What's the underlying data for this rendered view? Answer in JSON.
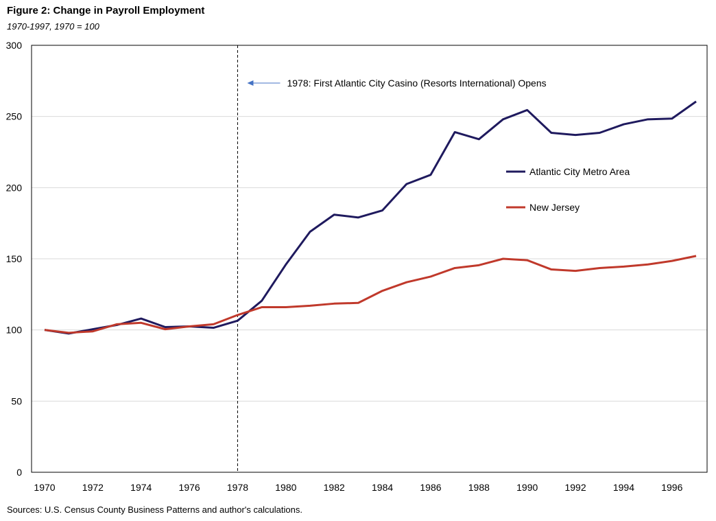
{
  "title": "Figure 2: Change in Payroll Employment",
  "subtitle": "1970-1997,  1970 = 100",
  "source": "Sources: U.S. Census County Business Patterns and author's calculations.",
  "chart_data": {
    "type": "line",
    "x": [
      1970,
      1971,
      1972,
      1973,
      1974,
      1975,
      1976,
      1977,
      1978,
      1979,
      1980,
      1981,
      1982,
      1983,
      1984,
      1985,
      1986,
      1987,
      1988,
      1989,
      1990,
      1991,
      1992,
      1993,
      1994,
      1995,
      1996,
      1997
    ],
    "x_ticks": [
      "1970",
      "1972",
      "1974",
      "1976",
      "1978",
      "1980",
      "1982",
      "1984",
      "1986",
      "1988",
      "1990",
      "1992",
      "1994",
      "1996"
    ],
    "y_ticks": [
      "0",
      "50",
      "100",
      "150",
      "200",
      "250",
      "300"
    ],
    "ylim": [
      0,
      300
    ],
    "xlim": [
      1970,
      1997
    ],
    "grid": "horizontal",
    "legend_position": "right",
    "series": [
      {
        "name": "Atlantic City Metro Area",
        "color": "#1f1a5e",
        "values": [
          100,
          97.5,
          100.5,
          103.5,
          108,
          102,
          102.5,
          101.5,
          106.5,
          120.5,
          146,
          169,
          181,
          179,
          184,
          202.5,
          209,
          239,
          234,
          248,
          254.5,
          238.5,
          237,
          238.5,
          244.5,
          248,
          248.5,
          260.5
        ]
      },
      {
        "name": "New Jersey",
        "color": "#c0392b",
        "values": [
          100,
          98,
          99,
          104,
          105,
          100.5,
          102.5,
          104,
          110.5,
          116,
          116,
          117,
          118.5,
          119,
          127.5,
          133.5,
          137.5,
          143.5,
          145.5,
          150,
          149,
          142.5,
          141.5,
          143.5,
          144.5,
          146,
          148.5,
          152
        ]
      }
    ],
    "annotation": {
      "x": 1978,
      "text": "1978:  First Atlantic City Casino (Resorts International) Opens"
    }
  }
}
